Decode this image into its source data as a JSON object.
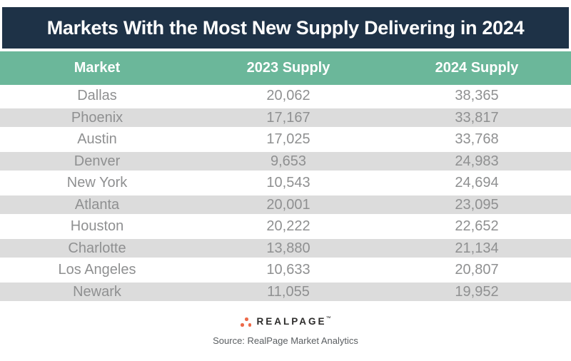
{
  "title": "Markets With the Most New Supply Delivering in 2024",
  "chart_data": {
    "type": "table",
    "title": "Markets With the Most New Supply Delivering in 2024",
    "columns": [
      "Market",
      "2023 Supply",
      "2024 Supply"
    ],
    "categories": [
      "Dallas",
      "Phoenix",
      "Austin",
      "Denver",
      "New York",
      "Atlanta",
      "Houston",
      "Charlotte",
      "Los Angeles",
      "Newark"
    ],
    "series": [
      {
        "name": "2023 Supply",
        "values": [
          20062,
          17167,
          17025,
          9653,
          10543,
          20001,
          20222,
          13880,
          10633,
          11055
        ]
      },
      {
        "name": "2024 Supply",
        "values": [
          38365,
          33817,
          33768,
          24983,
          24694,
          23095,
          22652,
          21134,
          20807,
          19952
        ]
      }
    ]
  },
  "table": {
    "columns": [
      "Market",
      "2023 Supply",
      "2024 Supply"
    ],
    "rows": [
      {
        "market": "Dallas",
        "supply_2023": "20,062",
        "supply_2024": "38,365"
      },
      {
        "market": "Phoenix",
        "supply_2023": "17,167",
        "supply_2024": "33,817"
      },
      {
        "market": "Austin",
        "supply_2023": "17,025",
        "supply_2024": "33,768"
      },
      {
        "market": "Denver",
        "supply_2023": "9,653",
        "supply_2024": "24,983"
      },
      {
        "market": "New York",
        "supply_2023": "10,543",
        "supply_2024": "24,694"
      },
      {
        "market": "Atlanta",
        "supply_2023": "20,001",
        "supply_2024": "23,095"
      },
      {
        "market": "Houston",
        "supply_2023": "20,222",
        "supply_2024": "22,652"
      },
      {
        "market": "Charlotte",
        "supply_2023": "13,880",
        "supply_2024": "21,134"
      },
      {
        "market": "Los Angeles",
        "supply_2023": "10,633",
        "supply_2024": "20,807"
      },
      {
        "market": "Newark",
        "supply_2023": "11,055",
        "supply_2024": "19,952"
      }
    ]
  },
  "footer": {
    "logo_text": "REALPAGE",
    "trademark": "™",
    "source": "Source: RealPage Market Analytics"
  },
  "colors": {
    "navy": "#1e3247",
    "green": "#6bb79a",
    "row_gray": "#dcdcdc",
    "row_text": "#8f9091",
    "header_text": "#ffffff",
    "logo_orange": "#ed6a4a",
    "logo_text_color": "#2d2c2b",
    "source_text": "#5a5e61"
  }
}
